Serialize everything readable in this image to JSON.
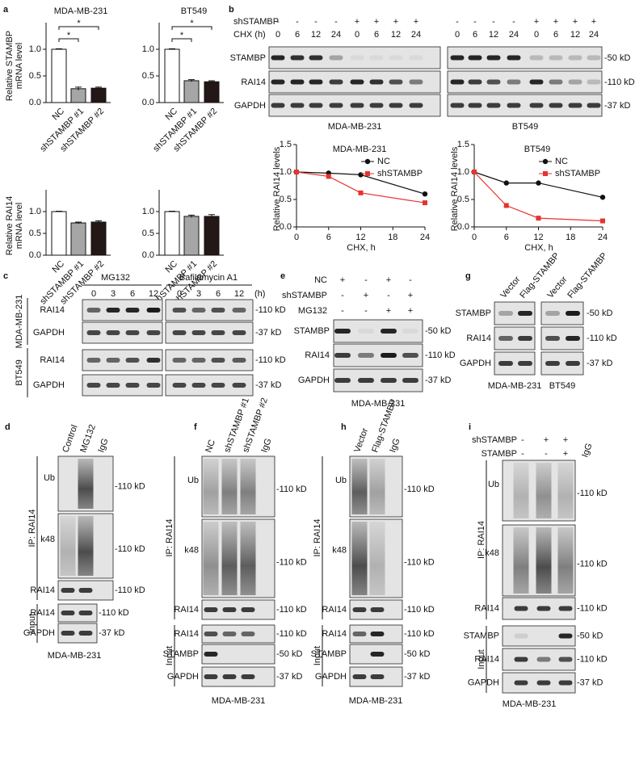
{
  "panel_letters": [
    "a",
    "b",
    "c",
    "d",
    "e",
    "f",
    "g",
    "h",
    "i"
  ],
  "chart_data": [
    {
      "type": "bar",
      "title": "MDA-MB-231",
      "y_label": [
        "Relative STAMBP",
        "mRNA level"
      ],
      "categories": [
        "NC",
        "shSTAMBP #1",
        "shSTAMBP #2"
      ],
      "values": [
        1.0,
        0.26,
        0.27
      ],
      "errors": [
        0.01,
        0.03,
        0.02
      ],
      "colors": [
        "#ffffff",
        "#a6a6a6",
        "#231815"
      ],
      "ylim": [
        0,
        1.5
      ],
      "yticks": [
        {
          "value": 0,
          "label": "0.0"
        },
        {
          "value": 0.5,
          "label": "0.5"
        },
        {
          "value": 1,
          "label": "1.0"
        }
      ],
      "annotations": [
        "*",
        "*"
      ]
    },
    {
      "type": "bar",
      "title": "BT549",
      "categories": [
        "NC",
        "shSTAMBP #1",
        "shSTAMBP #2"
      ],
      "values": [
        1.0,
        0.41,
        0.39
      ],
      "errors": [
        0.01,
        0.02,
        0.02
      ],
      "colors": [
        "#ffffff",
        "#a6a6a6",
        "#231815"
      ],
      "ylim": [
        0,
        1.5
      ],
      "yticks": [
        {
          "value": 0,
          "label": "0.0"
        },
        {
          "value": 0.5,
          "label": "0.5"
        },
        {
          "value": 1,
          "label": "1.0"
        }
      ],
      "annotations": [
        "*",
        "*"
      ]
    },
    {
      "type": "bar",
      "y_label": [
        "Relative RAI14",
        "mRNA level"
      ],
      "categories": [
        "NC",
        "shSTAMBP #1",
        "shSTAMBP #2"
      ],
      "values": [
        1.0,
        0.74,
        0.76
      ],
      "errors": [
        0.01,
        0.02,
        0.03
      ],
      "colors": [
        "#ffffff",
        "#a6a6a6",
        "#231815"
      ],
      "ylim": [
        0,
        1.5
      ],
      "yticks": [
        {
          "value": 0,
          "label": "0.0"
        },
        {
          "value": 0.5,
          "label": "0.5"
        },
        {
          "value": 1,
          "label": "1.0"
        }
      ]
    },
    {
      "type": "bar",
      "categories": [
        "NC",
        "shSTAMBP #1",
        "shSTAMBP #2"
      ],
      "values": [
        1.0,
        0.89,
        0.89
      ],
      "errors": [
        0.01,
        0.03,
        0.04
      ],
      "colors": [
        "#ffffff",
        "#a6a6a6",
        "#231815"
      ],
      "ylim": [
        0,
        1.5
      ],
      "yticks": [
        {
          "value": 0,
          "label": "0.0"
        },
        {
          "value": 0.5,
          "label": "0.5"
        },
        {
          "value": 1,
          "label": "1.0"
        }
      ]
    },
    {
      "type": "line",
      "title": "MDA-MB-231",
      "x_label": "CHX, h",
      "y_label": "Relative RAI14 levels",
      "x": [
        0,
        6,
        12,
        24
      ],
      "series": [
        {
          "name": "NC",
          "color": "#111111",
          "marker": "circle",
          "values": [
            1.0,
            0.98,
            0.95,
            0.6
          ]
        },
        {
          "name": "shSTAMBP",
          "color": "#e8322e",
          "marker": "square",
          "values": [
            1.0,
            0.92,
            0.62,
            0.44
          ]
        }
      ],
      "xlim": [
        0,
        24
      ],
      "xticks": [
        0,
        6,
        12,
        18,
        24
      ],
      "ylim": [
        0,
        1.5
      ],
      "yticks": [
        {
          "value": 0,
          "label": "0.0"
        },
        {
          "value": 0.5,
          "label": "0.5"
        },
        {
          "value": 1,
          "label": "1.0"
        },
        {
          "value": 1.5,
          "label": "1.5"
        }
      ]
    },
    {
      "type": "line",
      "title": "BT549",
      "x_label": "CHX, h",
      "y_label": "Relative RAI14 levels",
      "x": [
        0,
        6,
        12,
        24
      ],
      "series": [
        {
          "name": "NC",
          "color": "#111111",
          "marker": "circle",
          "values": [
            1.0,
            0.8,
            0.8,
            0.54
          ]
        },
        {
          "name": "shSTAMBP",
          "color": "#e8322e",
          "marker": "square",
          "values": [
            1.0,
            0.39,
            0.16,
            0.11
          ]
        }
      ],
      "xlim": [
        0,
        24
      ],
      "xticks": [
        0,
        6,
        12,
        18,
        24
      ],
      "ylim": [
        0,
        1.5
      ],
      "yticks": [
        {
          "value": 0,
          "label": "0.0"
        },
        {
          "value": 0.5,
          "label": "0.5"
        },
        {
          "value": 1,
          "label": "1.0"
        },
        {
          "value": 1.5,
          "label": "1.5"
        }
      ]
    }
  ],
  "blots": {
    "b": {
      "header_rows": [
        {
          "label": "shSTAMBP",
          "lanes": [
            "-",
            "-",
            "-",
            "-",
            "+",
            "+",
            "+",
            "+",
            "-",
            "-",
            "-",
            "-",
            "+",
            "+",
            "+",
            "+"
          ]
        },
        {
          "label": "CHX (h)",
          "lanes": [
            "0",
            "6",
            "12",
            "24",
            "0",
            "6",
            "12",
            "24",
            "0",
            "6",
            "12",
            "24",
            "0",
            "6",
            "12",
            "24"
          ]
        }
      ],
      "rows": [
        {
          "label": "STAMBP",
          "size": "-50 kD"
        },
        {
          "label": "RAI14",
          "size": "-110 kD"
        },
        {
          "label": "GAPDH",
          "size": "-37 kD"
        }
      ],
      "cell_lines": [
        "MDA-MB-231",
        "BT549"
      ]
    },
    "c": {
      "treatments": [
        "MG132",
        "Bafilomycin A1"
      ],
      "unit": "(h)",
      "times": [
        "0",
        "3",
        "6",
        "12",
        "0",
        "3",
        "6",
        "12"
      ],
      "groups": [
        {
          "cell_line": "MDA-MB-231",
          "rows": [
            {
              "label": "RAI14",
              "size": "-110 kD"
            },
            {
              "label": "GAPDH",
              "size": "-37 kD"
            }
          ]
        },
        {
          "cell_line": "BT549",
          "rows": [
            {
              "label": "RAI14",
              "size": "-110 kD"
            },
            {
              "label": "GAPDH",
              "size": "-37 kD"
            }
          ]
        }
      ]
    },
    "e": {
      "header_rows": [
        {
          "label": "NC",
          "lanes": [
            "+",
            "-",
            "+",
            "-"
          ]
        },
        {
          "label": "shSTAMBP",
          "lanes": [
            "-",
            "+",
            "-",
            "+"
          ]
        },
        {
          "label": "MG132",
          "lanes": [
            "-",
            "-",
            "+",
            "+"
          ]
        }
      ],
      "rows": [
        {
          "label": "STAMBP",
          "size": "-50 kD"
        },
        {
          "label": "RAI14",
          "size": "-110 kD"
        },
        {
          "label": "GAPDH",
          "size": "-37 kD"
        }
      ],
      "cell_line": "MDA-MB-231"
    },
    "g": {
      "columns": [
        "Vector",
        "Flag-STAMBP",
        "Vector",
        "Flag-STAMBP"
      ],
      "rows": [
        {
          "label": "STAMBP",
          "size": "-50 kD"
        },
        {
          "label": "RAI14",
          "size": "-110 kD"
        },
        {
          "label": "GAPDH",
          "size": "-37 kD"
        }
      ],
      "cell_lines": [
        "MDA-MB-231",
        "BT549"
      ]
    },
    "d": {
      "columns": [
        "Control",
        "MG132",
        "IgG"
      ],
      "ip": {
        "label": "IP: RAI14",
        "rows": [
          {
            "label": "Ub",
            "size": "-110 kD"
          },
          {
            "label": "k48",
            "size": "-110 kD"
          },
          {
            "label": "RAI14",
            "size": "-110 kD"
          }
        ]
      },
      "input": {
        "label": "Input",
        "rows": [
          {
            "label": "RAI14",
            "size": "-110 kD"
          },
          {
            "label": "GAPDH",
            "size": "-37 kD"
          }
        ]
      },
      "cell_line": "MDA-MB-231"
    },
    "f": {
      "columns": [
        "NC",
        "shSTAMBP #1",
        "shSTAMBP #2",
        "IgG"
      ],
      "ip": {
        "label": "IP: RAI14",
        "rows": [
          {
            "label": "Ub",
            "size": "-110 kD"
          },
          {
            "label": "k48",
            "size": "-110 kD"
          },
          {
            "label": "RAI14",
            "size": "-110 kD"
          }
        ]
      },
      "input": {
        "label": "Input",
        "rows": [
          {
            "label": "RAI14",
            "size": "-110 kD"
          },
          {
            "label": "STAMBP",
            "size": "-50 kD"
          },
          {
            "label": "GAPDH",
            "size": "-37 kD"
          }
        ]
      },
      "cell_line": "MDA-MB-231"
    },
    "h": {
      "columns": [
        "Vector",
        "Flag-STAMBP",
        "IgG"
      ],
      "ip": {
        "label": "IP: RAI14",
        "rows": [
          {
            "label": "Ub",
            "size": "-110 kD"
          },
          {
            "label": "k48",
            "size": "-110 kD"
          },
          {
            "label": "RAI14",
            "size": "-110 kD"
          }
        ]
      },
      "input": {
        "label": "Input",
        "rows": [
          {
            "label": "RAI14",
            "size": "-110 kD"
          },
          {
            "label": "STAMBP",
            "size": "-50 kD"
          },
          {
            "label": "GAPDH",
            "size": "-37 kD"
          }
        ]
      },
      "cell_line": "MDA-MB-231"
    },
    "i": {
      "header_rows": [
        {
          "label": "shSTAMBP",
          "lanes": [
            "-",
            "+",
            "+"
          ]
        },
        {
          "label": "STAMBP",
          "lanes": [
            "-",
            "-",
            "+"
          ]
        }
      ],
      "columns": [
        "IgG"
      ],
      "ip": {
        "label": "IP: RAI14",
        "rows": [
          {
            "label": "Ub",
            "size": "-110 kD"
          },
          {
            "label": "k48",
            "size": "-110 kD"
          },
          {
            "label": "RAI14",
            "size": "-110 kD"
          }
        ]
      },
      "input": {
        "label": "Input",
        "rows": [
          {
            "label": "STAMBP",
            "size": "-50 kD"
          },
          {
            "label": "RAI14",
            "size": "-110 kD"
          },
          {
            "label": "GAPDH",
            "size": "-37 kD"
          }
        ]
      },
      "cell_line": "MDA-MB-231"
    }
  }
}
